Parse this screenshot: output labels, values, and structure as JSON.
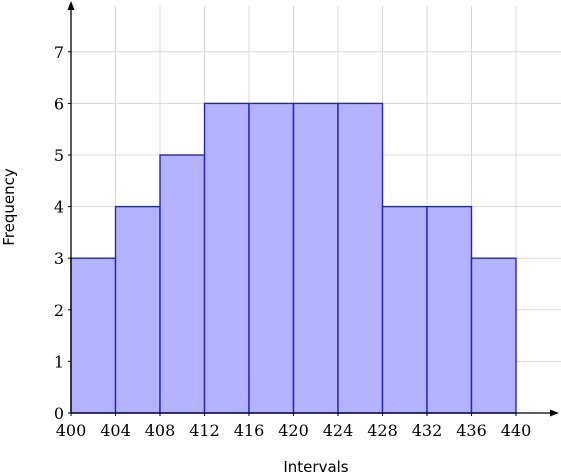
{
  "chart_data": {
    "type": "bar",
    "subtype": "histogram",
    "title": "",
    "xlabel": "Intervals",
    "ylabel": "Frequency",
    "bins": [
      {
        "start": 400,
        "end": 404,
        "value": 3
      },
      {
        "start": 404,
        "end": 408,
        "value": 4
      },
      {
        "start": 408,
        "end": 412,
        "value": 5
      },
      {
        "start": 412,
        "end": 416,
        "value": 6
      },
      {
        "start": 416,
        "end": 420,
        "value": 6
      },
      {
        "start": 420,
        "end": 424,
        "value": 6
      },
      {
        "start": 424,
        "end": 428,
        "value": 6
      },
      {
        "start": 428,
        "end": 432,
        "value": 4
      },
      {
        "start": 432,
        "end": 436,
        "value": 4
      },
      {
        "start": 436,
        "end": 440,
        "value": 3
      }
    ],
    "x_ticks": [
      "400",
      "404",
      "408",
      "412",
      "416",
      "420",
      "424",
      "428",
      "432",
      "436",
      "440"
    ],
    "y_ticks": [
      "0",
      "1",
      "2",
      "3",
      "4",
      "5",
      "6",
      "7"
    ],
    "xlim": [
      400,
      444
    ],
    "ylim": [
      0,
      8
    ],
    "grid": true,
    "colors": {
      "bar_fill": "#b3b3ff",
      "bar_stroke": "#2323cc",
      "grid": "#d8d8d8"
    }
  }
}
